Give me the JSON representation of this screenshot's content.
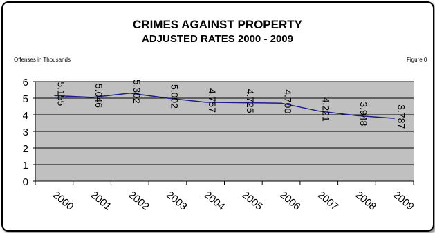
{
  "chart_data": {
    "type": "line",
    "title": "CRIMES AGAINST PROPERTY",
    "subtitle": "ADJUSTED RATES 2000 - 2009",
    "unit_note": "Offenses in Thousands",
    "figure_label": "Figure 0",
    "categories": [
      "2000",
      "2001",
      "2002",
      "2003",
      "2004",
      "2005",
      "2006",
      "2007",
      "2008",
      "2009"
    ],
    "values": [
      5.155,
      5.046,
      5.302,
      5.002,
      4.757,
      4.725,
      4.7,
      4.221,
      3.948,
      3.787
    ],
    "data_labels": [
      "5.155",
      "5.046",
      "5.302",
      "5.002",
      "4.757",
      "4.725",
      "4.700",
      "4.221",
      "3.948",
      "3.787"
    ],
    "ylim": [
      0,
      6
    ],
    "yticks": [
      "0",
      "1",
      "2",
      "3",
      "4",
      "5",
      "6"
    ],
    "grid": true,
    "colors": {
      "line": "#1c1c8c",
      "plot_bg": "#c0c0c0",
      "grid": "#000000"
    }
  }
}
